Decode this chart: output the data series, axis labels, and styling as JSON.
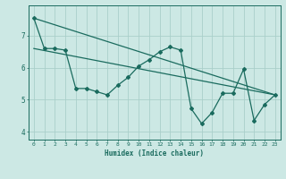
{
  "title": "",
  "xlabel": "Humidex (Indice chaleur)",
  "bg_color": "#cce8e4",
  "grid_color": "#aacfca",
  "line_color": "#1a6b5e",
  "xlim": [
    -0.5,
    23.5
  ],
  "ylim": [
    3.75,
    7.95
  ],
  "yticks": [
    4,
    5,
    6,
    7
  ],
  "xticks": [
    0,
    1,
    2,
    3,
    4,
    5,
    6,
    7,
    8,
    9,
    10,
    11,
    12,
    13,
    14,
    15,
    16,
    17,
    18,
    19,
    20,
    21,
    22,
    23
  ],
  "line1_x": [
    0,
    1,
    2,
    3,
    4,
    5,
    6,
    7,
    8,
    9,
    10,
    11,
    12,
    13,
    14,
    15,
    16,
    17,
    18,
    19,
    20,
    21,
    22,
    23
  ],
  "line1_y": [
    7.55,
    6.6,
    6.6,
    6.55,
    5.35,
    5.35,
    5.25,
    5.15,
    5.45,
    5.7,
    6.05,
    6.25,
    6.5,
    6.65,
    6.55,
    4.72,
    4.25,
    4.6,
    5.2,
    5.2,
    5.95,
    4.35,
    4.85,
    5.15
  ],
  "line2_x": [
    0,
    23
  ],
  "line2_y": [
    7.55,
    5.15
  ],
  "line3_x": [
    0,
    23
  ],
  "line3_y": [
    6.6,
    5.15
  ]
}
